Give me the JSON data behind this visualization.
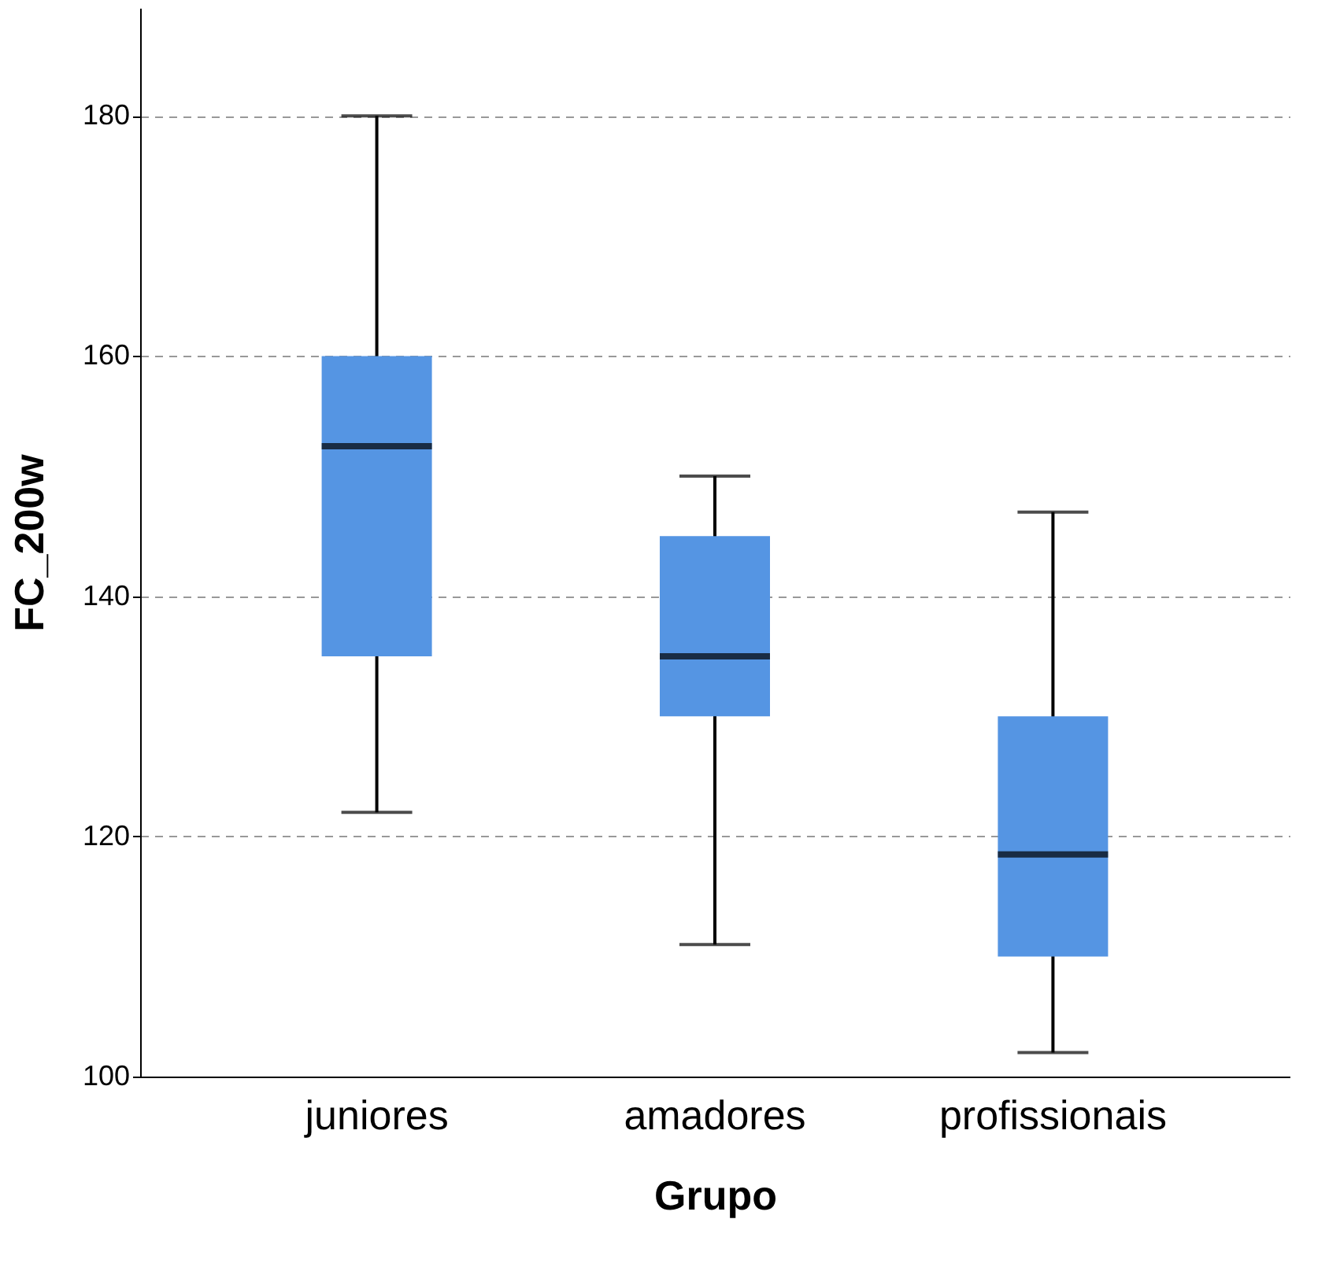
{
  "chart_data": {
    "type": "box",
    "xlabel": "Grupo",
    "ylabel": "FC_200w",
    "categories": [
      "juniores",
      "amadores",
      "profissionais"
    ],
    "series": [
      {
        "color": "#5595e3",
        "boxes": [
          {
            "low": 122,
            "q1": 135,
            "median": 152.5,
            "q3": 160,
            "high": 180
          },
          {
            "low": 111,
            "q1": 130,
            "median": 135,
            "q3": 145,
            "high": 150
          },
          {
            "low": 102,
            "q1": 110,
            "median": 118.5,
            "q3": 130,
            "high": 147
          }
        ]
      }
    ],
    "ylim": [
      100,
      189
    ],
    "yticks": [
      100,
      120,
      140,
      160,
      180
    ],
    "grid": "y"
  }
}
